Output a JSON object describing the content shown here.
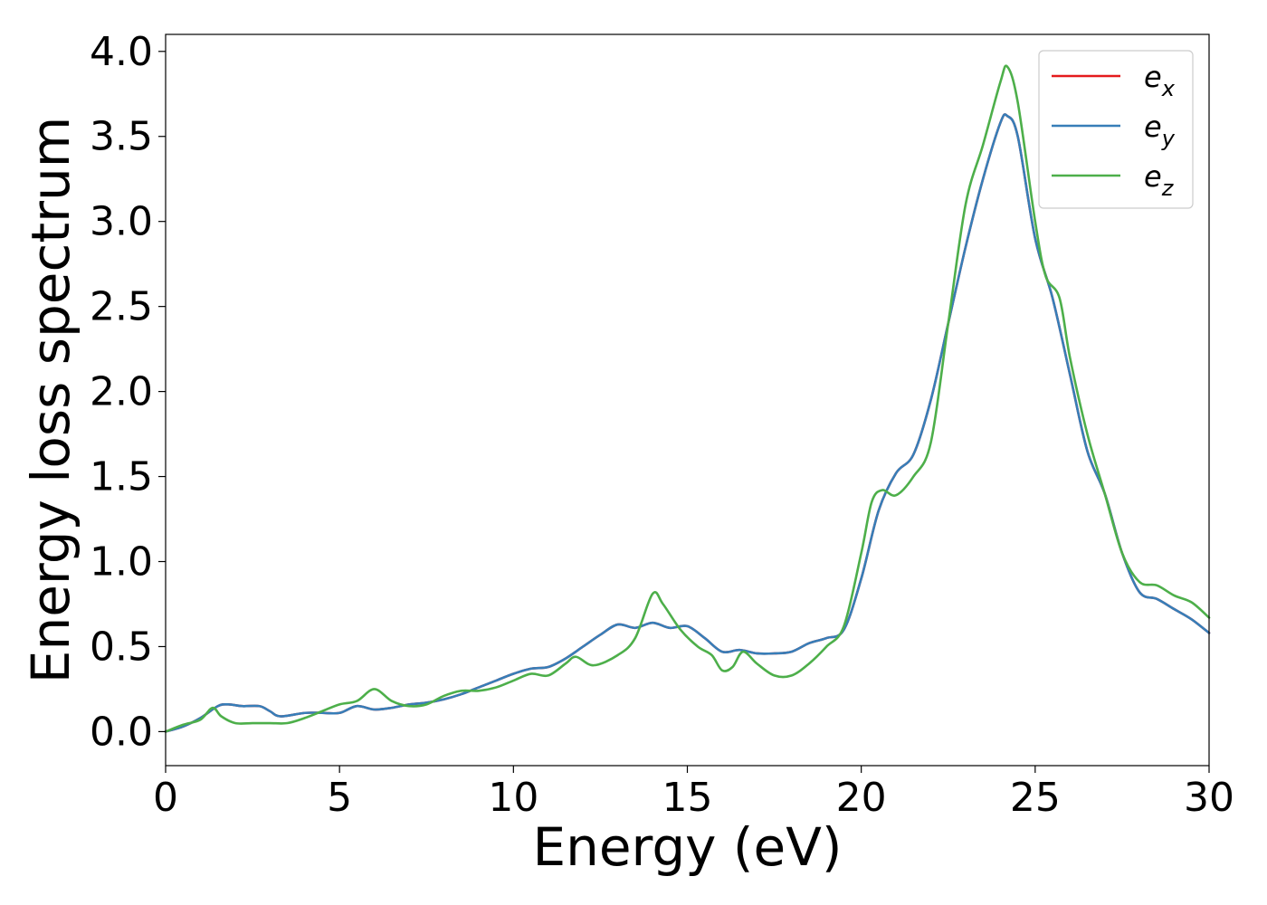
{
  "chart_data": {
    "type": "line",
    "title": "",
    "xlabel": "Energy (eV)",
    "ylabel": "Energy loss spectrum",
    "xlim": [
      0,
      30
    ],
    "ylim": [
      -0.2,
      4.1
    ],
    "xticks": [
      0,
      5,
      10,
      15,
      20,
      25,
      30
    ],
    "xtick_labels": [
      "0",
      "5",
      "10",
      "15",
      "20",
      "25",
      "30"
    ],
    "yticks": [
      0.0,
      0.5,
      1.0,
      1.5,
      2.0,
      2.5,
      3.0,
      3.5,
      4.0
    ],
    "ytick_labels": [
      "0.0",
      "0.5",
      "1.0",
      "1.5",
      "2.0",
      "2.5",
      "3.0",
      "3.5",
      "4.0"
    ],
    "grid": false,
    "legend_position": "top-right",
    "series": [
      {
        "name": "e_x",
        "label_base": "e",
        "label_sub": "x",
        "color": "#e41a1c",
        "x": [
          0,
          0.5,
          1.0,
          1.5,
          1.8,
          2.2,
          2.7,
          3.0,
          3.3,
          4.0,
          4.5,
          5.0,
          5.5,
          6.0,
          6.5,
          7.0,
          7.5,
          8.0,
          8.5,
          9.0,
          9.5,
          10.0,
          10.5,
          11.0,
          11.5,
          12.0,
          12.5,
          13.0,
          13.5,
          14.0,
          14.5,
          15.0,
          15.5,
          16.0,
          16.5,
          17.0,
          17.5,
          18.0,
          18.5,
          19.0,
          19.5,
          20.0,
          20.5,
          21.0,
          21.5,
          22.0,
          22.5,
          23.0,
          23.5,
          24.0,
          24.2,
          24.5,
          25.0,
          25.5,
          26.0,
          26.5,
          27.0,
          27.5,
          28.0,
          28.5,
          29.0,
          29.5,
          30.0
        ],
        "y": [
          0.0,
          0.03,
          0.08,
          0.15,
          0.16,
          0.15,
          0.15,
          0.12,
          0.09,
          0.11,
          0.11,
          0.11,
          0.15,
          0.13,
          0.14,
          0.16,
          0.17,
          0.19,
          0.22,
          0.26,
          0.3,
          0.34,
          0.37,
          0.38,
          0.43,
          0.5,
          0.57,
          0.63,
          0.61,
          0.64,
          0.61,
          0.62,
          0.55,
          0.47,
          0.48,
          0.46,
          0.46,
          0.47,
          0.52,
          0.55,
          0.6,
          0.9,
          1.3,
          1.52,
          1.63,
          1.95,
          2.4,
          2.85,
          3.25,
          3.58,
          3.62,
          3.5,
          2.9,
          2.55,
          2.1,
          1.65,
          1.4,
          1.05,
          0.82,
          0.78,
          0.72,
          0.66,
          0.58
        ]
      },
      {
        "name": "e_y",
        "label_base": "e",
        "label_sub": "y",
        "color": "#377eb8",
        "x": [
          0,
          0.5,
          1.0,
          1.5,
          1.8,
          2.2,
          2.7,
          3.0,
          3.3,
          4.0,
          4.5,
          5.0,
          5.5,
          6.0,
          6.5,
          7.0,
          7.5,
          8.0,
          8.5,
          9.0,
          9.5,
          10.0,
          10.5,
          11.0,
          11.5,
          12.0,
          12.5,
          13.0,
          13.5,
          14.0,
          14.5,
          15.0,
          15.5,
          16.0,
          16.5,
          17.0,
          17.5,
          18.0,
          18.5,
          19.0,
          19.5,
          20.0,
          20.5,
          21.0,
          21.5,
          22.0,
          22.5,
          23.0,
          23.5,
          24.0,
          24.2,
          24.5,
          25.0,
          25.5,
          26.0,
          26.5,
          27.0,
          27.5,
          28.0,
          28.5,
          29.0,
          29.5,
          30.0
        ],
        "y": [
          0.0,
          0.03,
          0.08,
          0.15,
          0.16,
          0.15,
          0.15,
          0.12,
          0.09,
          0.11,
          0.11,
          0.11,
          0.15,
          0.13,
          0.14,
          0.16,
          0.17,
          0.19,
          0.22,
          0.26,
          0.3,
          0.34,
          0.37,
          0.38,
          0.43,
          0.5,
          0.57,
          0.63,
          0.61,
          0.64,
          0.61,
          0.62,
          0.55,
          0.47,
          0.48,
          0.46,
          0.46,
          0.47,
          0.52,
          0.55,
          0.6,
          0.9,
          1.3,
          1.52,
          1.63,
          1.95,
          2.4,
          2.85,
          3.25,
          3.58,
          3.62,
          3.5,
          2.9,
          2.55,
          2.1,
          1.65,
          1.4,
          1.05,
          0.82,
          0.78,
          0.72,
          0.66,
          0.58
        ]
      },
      {
        "name": "e_z",
        "label_base": "e",
        "label_sub": "z",
        "color": "#4daf4a",
        "x": [
          0,
          0.5,
          1.0,
          1.35,
          1.6,
          2.0,
          2.5,
          3.0,
          3.5,
          4.0,
          4.5,
          5.0,
          5.5,
          6.0,
          6.5,
          7.0,
          7.5,
          8.0,
          8.5,
          9.0,
          9.5,
          10.0,
          10.5,
          11.0,
          11.5,
          11.8,
          12.3,
          13.0,
          13.5,
          14.0,
          14.3,
          14.8,
          15.3,
          15.7,
          16.0,
          16.3,
          16.6,
          17.0,
          17.5,
          18.0,
          18.5,
          19.0,
          19.5,
          20.0,
          20.3,
          20.6,
          21.0,
          21.5,
          22.0,
          22.5,
          23.0,
          23.5,
          24.0,
          24.2,
          24.5,
          25.0,
          25.3,
          25.7,
          26.0,
          26.5,
          27.0,
          27.5,
          28.0,
          28.5,
          29.0,
          29.5,
          30.0
        ],
        "y": [
          0.0,
          0.04,
          0.07,
          0.14,
          0.09,
          0.05,
          0.05,
          0.05,
          0.05,
          0.08,
          0.12,
          0.16,
          0.18,
          0.25,
          0.18,
          0.15,
          0.16,
          0.21,
          0.24,
          0.24,
          0.26,
          0.3,
          0.34,
          0.33,
          0.4,
          0.44,
          0.39,
          0.45,
          0.55,
          0.81,
          0.75,
          0.6,
          0.5,
          0.45,
          0.36,
          0.38,
          0.47,
          0.4,
          0.33,
          0.33,
          0.4,
          0.5,
          0.62,
          1.05,
          1.35,
          1.42,
          1.39,
          1.5,
          1.7,
          2.4,
          3.1,
          3.45,
          3.82,
          3.91,
          3.7,
          3.0,
          2.68,
          2.55,
          2.2,
          1.75,
          1.4,
          1.05,
          0.88,
          0.86,
          0.8,
          0.76,
          0.67
        ]
      }
    ]
  }
}
